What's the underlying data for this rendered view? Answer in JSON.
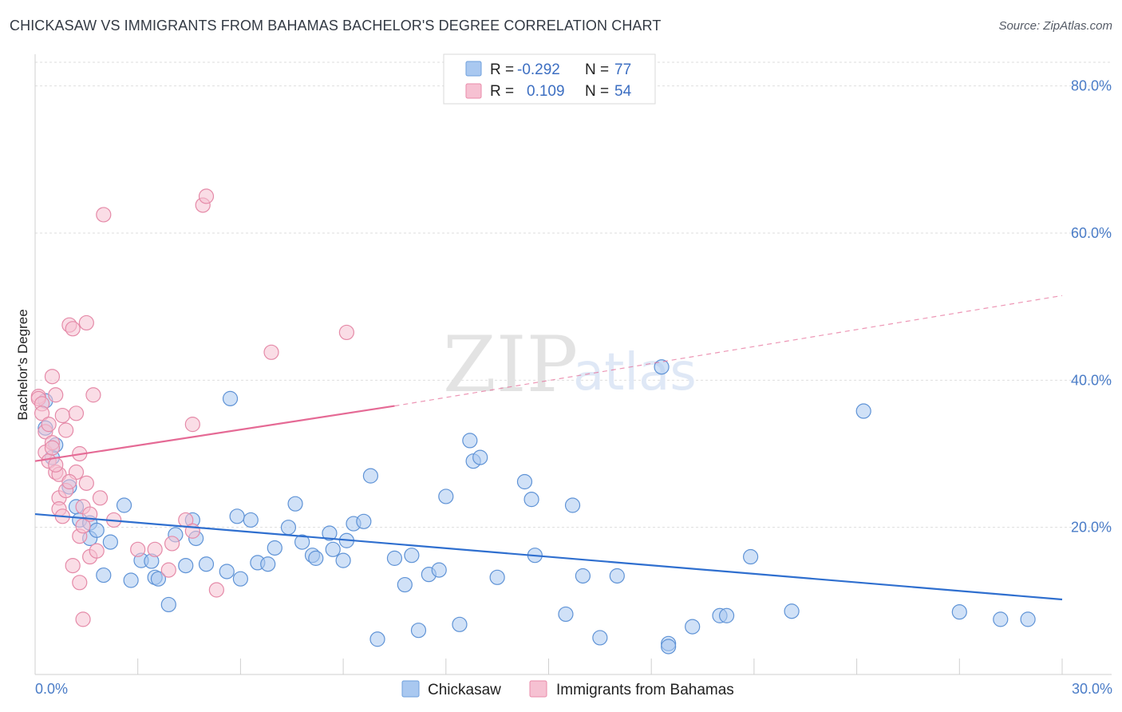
{
  "title": "CHICKASAW VS IMMIGRANTS FROM BAHAMAS BACHELOR'S DEGREE CORRELATION CHART",
  "source": "Source: ZipAtlas.com",
  "watermark": {
    "zip": "ZIP",
    "atlas": "atlas"
  },
  "chart_data": {
    "type": "scatter",
    "ylabel": "Bachelor's Degree",
    "xlabel": "",
    "xlim": [
      0,
      30
    ],
    "ylim": [
      0,
      83
    ],
    "x_tick_labels": [
      "0.0%",
      "30.0%"
    ],
    "y_ticks": [
      20,
      40,
      60,
      80
    ],
    "y_tick_labels": [
      "20.0%",
      "40.0%",
      "60.0%",
      "80.0%"
    ],
    "grid": true,
    "legend": {
      "placement": "top-center",
      "entries": [
        {
          "r_label": "R =",
          "r_value": "-0.292",
          "n_label": "N =",
          "n_value": "77",
          "color": "#a9c8f0",
          "stroke": "#6e9fdc"
        },
        {
          "r_label": "R =",
          "r_value": "0.109",
          "n_label": "N =",
          "n_value": "54",
          "color": "#f6c1d2",
          "stroke": "#e98aa9"
        }
      ]
    },
    "series": [
      {
        "name": "Chickasaw",
        "color": "#a9c8f0",
        "stroke": "#5f93d6",
        "trend_color": "#2f6fcf",
        "trend": {
          "x0": 0,
          "y0": 21.8,
          "x1": 30,
          "y1": 10.2
        },
        "points": [
          [
            0.3,
            37.2
          ],
          [
            0.3,
            33.5
          ],
          [
            0.5,
            29.5
          ],
          [
            0.6,
            31.2
          ],
          [
            1.0,
            25.5
          ],
          [
            1.2,
            22.8
          ],
          [
            1.3,
            21.0
          ],
          [
            1.6,
            20.6
          ],
          [
            1.6,
            18.5
          ],
          [
            1.8,
            19.6
          ],
          [
            2.0,
            13.5
          ],
          [
            2.2,
            18.0
          ],
          [
            2.6,
            23.0
          ],
          [
            2.8,
            12.8
          ],
          [
            3.1,
            15.5
          ],
          [
            3.4,
            15.4
          ],
          [
            3.5,
            13.2
          ],
          [
            3.6,
            13.0
          ],
          [
            3.9,
            9.5
          ],
          [
            4.1,
            19.0
          ],
          [
            4.4,
            14.8
          ],
          [
            4.6,
            21.0
          ],
          [
            4.7,
            18.5
          ],
          [
            5.0,
            15.0
          ],
          [
            5.6,
            14.0
          ],
          [
            5.9,
            21.5
          ],
          [
            5.7,
            37.5
          ],
          [
            6.0,
            13.0
          ],
          [
            6.3,
            21.0
          ],
          [
            6.5,
            15.2
          ],
          [
            6.8,
            15.0
          ],
          [
            7.0,
            17.2
          ],
          [
            7.4,
            20.0
          ],
          [
            7.6,
            23.2
          ],
          [
            7.8,
            18.0
          ],
          [
            8.1,
            16.2
          ],
          [
            8.2,
            15.8
          ],
          [
            8.6,
            19.2
          ],
          [
            8.7,
            17.0
          ],
          [
            9.0,
            15.5
          ],
          [
            9.1,
            18.2
          ],
          [
            9.3,
            20.5
          ],
          [
            9.6,
            20.8
          ],
          [
            9.8,
            27.0
          ],
          [
            10.0,
            4.8
          ],
          [
            10.5,
            15.8
          ],
          [
            10.8,
            12.2
          ],
          [
            11.0,
            16.2
          ],
          [
            11.2,
            6.0
          ],
          [
            11.5,
            13.6
          ],
          [
            11.8,
            14.2
          ],
          [
            12.0,
            24.2
          ],
          [
            12.4,
            6.8
          ],
          [
            12.7,
            31.8
          ],
          [
            12.8,
            29.0
          ],
          [
            13.0,
            29.5
          ],
          [
            13.5,
            13.2
          ],
          [
            14.3,
            26.2
          ],
          [
            14.5,
            23.8
          ],
          [
            14.6,
            16.2
          ],
          [
            15.5,
            8.2
          ],
          [
            15.7,
            23.0
          ],
          [
            16.0,
            13.4
          ],
          [
            16.5,
            5.0
          ],
          [
            17.0,
            13.4
          ],
          [
            18.3,
            41.8
          ],
          [
            18.5,
            4.2
          ],
          [
            18.5,
            3.8
          ],
          [
            19.2,
            6.5
          ],
          [
            20.0,
            8.0
          ],
          [
            20.2,
            8.0
          ],
          [
            20.9,
            16.0
          ],
          [
            22.1,
            8.6
          ],
          [
            24.2,
            35.8
          ],
          [
            27.0,
            8.5
          ],
          [
            28.2,
            7.5
          ],
          [
            29.0,
            7.5
          ]
        ]
      },
      {
        "name": "Immigrants from Bahamas",
        "color": "#f6c1d2",
        "stroke": "#e58aa8",
        "trend_color": "#e56a95",
        "trend": {
          "x0": 0,
          "y0": 29.0,
          "x1": 10.5,
          "y1": 36.5
        },
        "trend_dashed": {
          "x0": 10.5,
          "y0": 36.5,
          "x1": 30,
          "y1": 51.5
        },
        "points": [
          [
            0.1,
            37.8
          ],
          [
            0.1,
            37.5
          ],
          [
            0.2,
            36.8
          ],
          [
            0.2,
            35.5
          ],
          [
            0.3,
            33.0
          ],
          [
            0.3,
            30.2
          ],
          [
            0.4,
            29.0
          ],
          [
            0.5,
            31.5
          ],
          [
            0.5,
            40.5
          ],
          [
            0.6,
            38.0
          ],
          [
            0.6,
            27.5
          ],
          [
            0.7,
            27.2
          ],
          [
            0.7,
            24.0
          ],
          [
            0.7,
            22.5
          ],
          [
            0.8,
            21.5
          ],
          [
            0.8,
            35.2
          ],
          [
            0.9,
            25.0
          ],
          [
            1.0,
            47.5
          ],
          [
            1.1,
            47.0
          ],
          [
            1.2,
            35.5
          ],
          [
            1.2,
            27.5
          ],
          [
            1.3,
            30.0
          ],
          [
            1.3,
            18.8
          ],
          [
            1.4,
            22.8
          ],
          [
            1.4,
            20.2
          ],
          [
            1.5,
            47.8
          ],
          [
            1.6,
            21.8
          ],
          [
            1.6,
            16.0
          ],
          [
            1.7,
            38.0
          ],
          [
            1.8,
            16.8
          ],
          [
            1.9,
            24.0
          ],
          [
            1.1,
            14.8
          ],
          [
            1.3,
            12.5
          ],
          [
            1.4,
            7.5
          ],
          [
            2.3,
            21.0
          ],
          [
            2.0,
            62.5
          ],
          [
            3.0,
            17.0
          ],
          [
            3.5,
            17.0
          ],
          [
            3.9,
            14.2
          ],
          [
            4.0,
            17.8
          ],
          [
            4.4,
            21.0
          ],
          [
            4.6,
            19.5
          ],
          [
            4.6,
            34.0
          ],
          [
            4.9,
            63.8
          ],
          [
            5.0,
            65.0
          ],
          [
            5.3,
            11.5
          ],
          [
            6.9,
            43.8
          ],
          [
            9.1,
            46.5
          ],
          [
            0.4,
            34.0
          ],
          [
            0.5,
            30.8
          ],
          [
            0.6,
            28.5
          ],
          [
            1.0,
            26.2
          ],
          [
            1.5,
            26.0
          ],
          [
            0.9,
            33.2
          ]
        ]
      }
    ]
  },
  "bottom_legend": [
    {
      "label": "Chickasaw",
      "color": "#a9c8f0",
      "stroke": "#6e9fdc"
    },
    {
      "label": "Immigrants from Bahamas",
      "color": "#f6c1d2",
      "stroke": "#e98aa9"
    }
  ]
}
